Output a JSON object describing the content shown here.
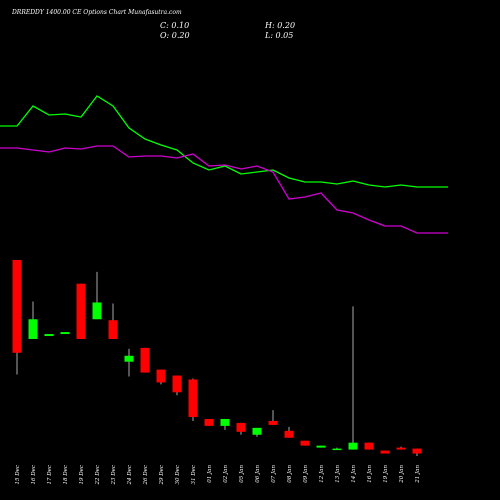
{
  "chart_data": {
    "type": "candlestick",
    "title": "DRREDDY 1400.00 CE Options Chart Munafasutra.com",
    "ohlc_text": {
      "close": "C: 0.10",
      "high": "H: 0.20",
      "open": "O: 0.20",
      "low": "L: 0.05"
    },
    "categories": [
      "15 Dec",
      "16 Dec",
      "17 Dec",
      "18 Dec",
      "19 Dec",
      "22 Dec",
      "23 Dec",
      "24 Dec",
      "26 Dec",
      "29 Dec",
      "30 Dec",
      "31 Dec",
      "01 Jan",
      "02 Jan",
      "05 Jan",
      "06 Jan",
      "07 Jan",
      "08 Jan",
      "09 Jan",
      "12 Jan",
      "13 Jan",
      "14 Jan",
      "16 Jan",
      "19 Jan",
      "20 Jan",
      "21 Jan"
    ],
    "open": [
      4.02,
      2.42,
      2.48,
      2.52,
      3.54,
      2.82,
      2.8,
      1.96,
      2.24,
      1.8,
      1.68,
      1.6,
      0.8,
      0.66,
      0.72,
      0.48,
      0.76,
      0.56,
      0.36,
      0.22,
      0.18,
      0.18,
      0.32,
      0.16,
      0.22,
      0.2
    ],
    "high": [
      4.02,
      3.18,
      2.52,
      2.56,
      3.54,
      3.78,
      3.14,
      2.22,
      2.24,
      1.8,
      1.68,
      1.62,
      0.8,
      0.8,
      0.72,
      0.62,
      0.98,
      0.64,
      0.36,
      0.26,
      0.22,
      3.08,
      0.32,
      0.16,
      0.24,
      0.2
    ],
    "low": [
      1.7,
      2.42,
      2.48,
      2.52,
      2.42,
      2.82,
      2.42,
      1.66,
      1.74,
      1.5,
      1.28,
      0.76,
      0.66,
      0.58,
      0.48,
      0.44,
      0.68,
      0.42,
      0.26,
      0.22,
      0.18,
      0.18,
      0.18,
      0.1,
      0.18,
      0.05
    ],
    "close": [
      2.14,
      2.82,
      2.52,
      2.56,
      2.42,
      3.16,
      2.42,
      2.08,
      1.74,
      1.54,
      1.34,
      0.84,
      0.66,
      0.8,
      0.54,
      0.62,
      0.68,
      0.42,
      0.26,
      0.26,
      0.2,
      0.32,
      0.18,
      0.1,
      0.18,
      0.1
    ],
    "up_color": "#00ff00",
    "down_color": "#ff0000",
    "lines": [
      {
        "color": "#00ff00",
        "values": [
          114,
          134,
          125,
          126,
          123,
          144,
          134,
          112,
          101,
          95,
          90,
          77,
          70,
          74,
          66,
          68,
          70,
          62,
          58,
          58,
          56,
          59,
          55,
          53,
          55,
          53
        ]
      },
      {
        "color": "#d000d0",
        "values": [
          92,
          90,
          88,
          92,
          91,
          94,
          94,
          83,
          84,
          84,
          82,
          86,
          74,
          75,
          71,
          74,
          68,
          41,
          43,
          47,
          30,
          27,
          20,
          14,
          14,
          7
        ]
      }
    ]
  }
}
